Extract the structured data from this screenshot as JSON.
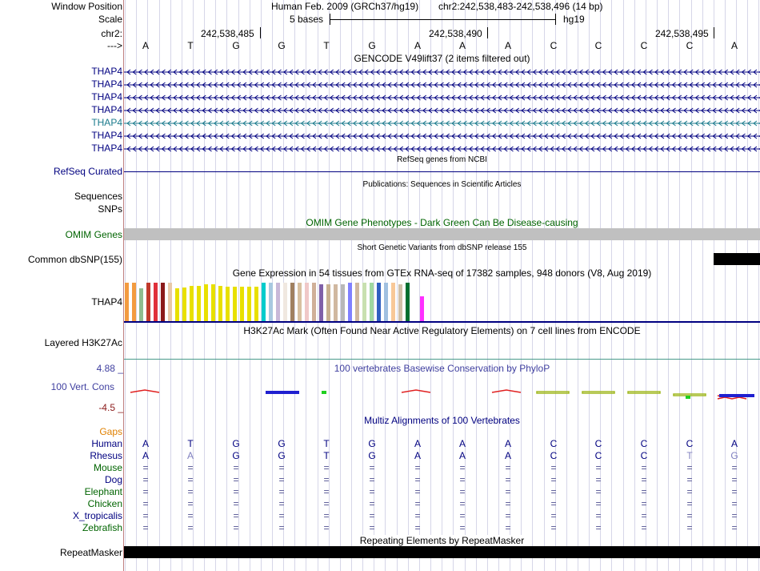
{
  "header": {
    "window_position_label": "Window Position",
    "scale_label": "Scale",
    "chrom_label": "chr2:",
    "arrow_label": "--->",
    "assembly": "Human Feb. 2009 (GRCh37/hg19)",
    "position": "chr2:242,538,483-242,538,496 (14 bp)",
    "scale_text": "5 bases",
    "db": "hg19",
    "ticks": [
      "242,538,485",
      "242,538,490",
      "242,538,495"
    ]
  },
  "sequence": [
    "A",
    "T",
    "G",
    "G",
    "T",
    "G",
    "A",
    "A",
    "A",
    "C",
    "C",
    "C",
    "C",
    "A"
  ],
  "gencode": {
    "title": "GENCODE V49lift37 (2 items filtered out)",
    "items": [
      "THAP4",
      "THAP4",
      "THAP4",
      "THAP4",
      "THAP4",
      "THAP4",
      "THAP4"
    ],
    "colors": [
      "#000080",
      "#000080",
      "#000080",
      "#000080",
      "#1a7a8c",
      "#000080",
      "#000080"
    ]
  },
  "refseq": {
    "title": "RefSeq genes from NCBI",
    "label": "RefSeq Curated"
  },
  "publications": {
    "title": "Publications: Sequences in Scientific Articles",
    "label": "Sequences"
  },
  "snps": {
    "label": "SNPs"
  },
  "omim": {
    "title": "OMIM Gene Phenotypes - Dark Green Can Be Disease-causing",
    "label": "OMIM Genes"
  },
  "dbsnp": {
    "title": "Short Genetic Variants from dbSNP release 155",
    "label": "Common dbSNP(155)"
  },
  "gtex": {
    "title": "Gene Expression in 54 tissues from GTEx RNA-seq of 17382 samples, 948 donors (V8, Aug 2019)",
    "label": "THAP4",
    "bars": [
      {
        "c": "#f39b40",
        "v": 0.92
      },
      {
        "c": "#f39b40",
        "v": 0.92
      },
      {
        "c": "#8fbc8f",
        "v": 0.78
      },
      {
        "c": "#c0392b",
        "v": 0.92
      },
      {
        "c": "#e0303a",
        "v": 0.92
      },
      {
        "c": "#8b1a1a",
        "v": 0.92
      },
      {
        "c": "#e8c8a8",
        "v": 0.92
      },
      {
        "c": "#e8e000",
        "v": 0.78
      },
      {
        "c": "#e8e000",
        "v": 0.8
      },
      {
        "c": "#e8e000",
        "v": 0.85
      },
      {
        "c": "#e8e000",
        "v": 0.85
      },
      {
        "c": "#e8e000",
        "v": 0.88
      },
      {
        "c": "#e8e000",
        "v": 0.88
      },
      {
        "c": "#e8e000",
        "v": 0.85
      },
      {
        "c": "#e8e000",
        "v": 0.82
      },
      {
        "c": "#e8e000",
        "v": 0.82
      },
      {
        "c": "#e8e000",
        "v": 0.82
      },
      {
        "c": "#e8e000",
        "v": 0.82
      },
      {
        "c": "#e8e000",
        "v": 0.82
      },
      {
        "c": "#00cccc",
        "v": 0.92
      },
      {
        "c": "#a8c8e0",
        "v": 0.92
      },
      {
        "c": "#c8b8d8",
        "v": 0.92
      },
      {
        "c": "#f0e8e0",
        "v": 0.92
      },
      {
        "c": "#a08060",
        "v": 0.92
      },
      {
        "c": "#d8c0a0",
        "v": 0.92
      },
      {
        "c": "#f0c8c8",
        "v": 0.92
      },
      {
        "c": "#d0b098",
        "v": 0.92
      },
      {
        "c": "#8060a8",
        "v": 0.88
      },
      {
        "c": "#c8b090",
        "v": 0.88
      },
      {
        "c": "#d0b8a0",
        "v": 0.88
      },
      {
        "c": "#b8b8b8",
        "v": 0.88
      },
      {
        "c": "#8080ff",
        "v": 0.92
      },
      {
        "c": "#d0b8a0",
        "v": 0.92
      },
      {
        "c": "#c8e0b0",
        "v": 0.92
      },
      {
        "c": "#a0d8a0",
        "v": 0.92
      },
      {
        "c": "#3060c0",
        "v": 0.92
      },
      {
        "c": "#a0c0e0",
        "v": 0.92
      },
      {
        "c": "#f8c898",
        "v": 0.92
      },
      {
        "c": "#d0c0a8",
        "v": 0.88
      },
      {
        "c": "#006e30",
        "v": 0.92
      },
      {
        "c": "#ffffff",
        "v": 0.92
      },
      {
        "c": "#ff30ff",
        "v": 0.6
      }
    ]
  },
  "h3k27ac": {
    "title": "H3K27Ac Mark (Often Found Near Active Regulatory Elements) on 7 cell lines from ENCODE",
    "label": "Layered H3K27Ac"
  },
  "conservation": {
    "title": "100 vertebrates Basewise Conservation by PhyloP",
    "label": "100 Vert. Cons",
    "max": "4.88 _",
    "min": "-4.5 _"
  },
  "multiz": {
    "title": "Multiz Alignments of 100 Vertebrates",
    "gaps_label": "Gaps",
    "species": [
      {
        "name": "Human",
        "color": "#000080",
        "seq": [
          "A",
          "T",
          "G",
          "G",
          "T",
          "G",
          "A",
          "A",
          "A",
          "C",
          "C",
          "C",
          "C",
          "A"
        ]
      },
      {
        "name": "Rhesus",
        "color": "#000080",
        "seq": [
          "A",
          "A",
          "G",
          "G",
          "T",
          "G",
          "A",
          "A",
          "A",
          "C",
          "C",
          "C",
          "T",
          "G"
        ]
      },
      {
        "name": "Mouse",
        "color": "#006400",
        "seq": [
          "=",
          "=",
          "=",
          "=",
          "=",
          "=",
          "=",
          "=",
          "=",
          "=",
          "=",
          "=",
          "=",
          "="
        ]
      },
      {
        "name": "Dog",
        "color": "#000080",
        "seq": [
          "=",
          "=",
          "=",
          "=",
          "=",
          "=",
          "=",
          "=",
          "=",
          "=",
          "=",
          "=",
          "=",
          "="
        ]
      },
      {
        "name": "Elephant",
        "color": "#006400",
        "seq": [
          "=",
          "=",
          "=",
          "=",
          "=",
          "=",
          "=",
          "=",
          "=",
          "=",
          "=",
          "=",
          "=",
          "="
        ]
      },
      {
        "name": "Chicken",
        "color": "#006400",
        "seq": [
          "=",
          "=",
          "=",
          "=",
          "=",
          "=",
          "=",
          "=",
          "=",
          "=",
          "=",
          "=",
          "=",
          "="
        ]
      },
      {
        "name": "X_tropicalis",
        "color": "#000080",
        "seq": [
          "=",
          "=",
          "=",
          "=",
          "=",
          "=",
          "=",
          "=",
          "=",
          "=",
          "=",
          "=",
          "=",
          "="
        ]
      },
      {
        "name": "Zebrafish",
        "color": "#006400",
        "seq": [
          "=",
          "=",
          "=",
          "=",
          "=",
          "=",
          "=",
          "=",
          "=",
          "=",
          "=",
          "=",
          "=",
          "="
        ]
      }
    ]
  },
  "repeatmasker": {
    "title": "Repeating Elements by RepeatMasker",
    "label": "RepeatMasker"
  },
  "colors": {
    "navy": "#000080",
    "green": "#006400",
    "orange": "#e08000",
    "maroon": "#8b1a1a",
    "phylop": "#4040a0",
    "omim_gray": "#c0c0c0"
  }
}
